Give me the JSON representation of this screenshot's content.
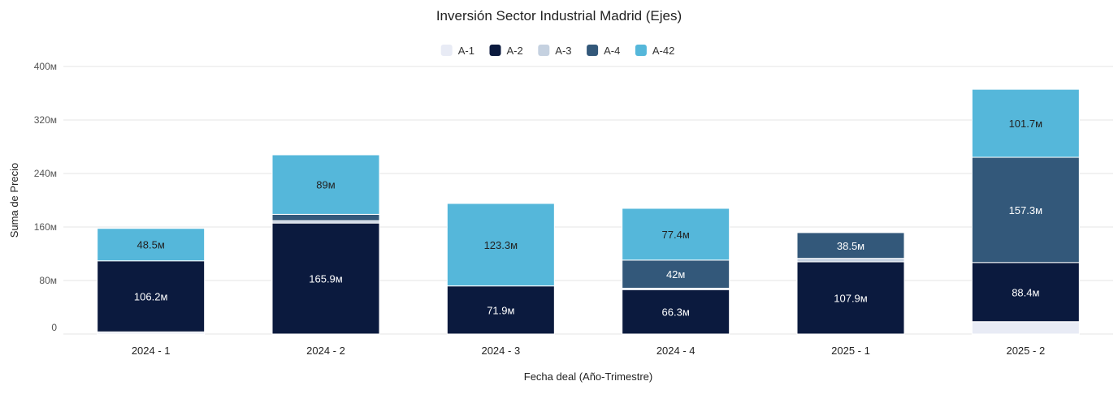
{
  "chart_data": {
    "type": "bar",
    "stacked": true,
    "title": "Inversión Sector Industrial Madrid (Ejes)",
    "xlabel": "Fecha deal (Año-Trimestre)",
    "ylabel": "Suma de Precio",
    "ylim": [
      0,
      400
    ],
    "yticks": [
      0,
      80,
      160,
      240,
      320,
      400
    ],
    "ytick_labels": [
      "0",
      "80м",
      "160м",
      "240м",
      "320м",
      "400м"
    ],
    "grid": true,
    "legend_position": "top-center",
    "categories": [
      "2024 - 1",
      "2024 - 2",
      "2024 - 3",
      "2024 - 4",
      "2025 - 1",
      "2025 - 2"
    ],
    "series": [
      {
        "name": "A-1",
        "color": "#e8ebf5",
        "values": [
          3.2,
          0,
          0,
          0,
          0,
          18.5
        ],
        "labels": [
          "",
          "",
          "",
          "",
          "",
          ""
        ],
        "label_color": "#333333"
      },
      {
        "name": "A-2",
        "color": "#0b1a3e",
        "values": [
          106.2,
          165.9,
          71.9,
          66.3,
          107.9,
          88.4
        ],
        "labels": [
          "106.2м",
          "165.9м",
          "71.9м",
          "66.3м",
          "107.9м",
          "88.4м"
        ],
        "label_color": "#ffffff"
      },
      {
        "name": "A-3",
        "color": "#c5d1e0",
        "values": [
          0,
          3.5,
          0,
          2.2,
          5.2,
          0
        ],
        "labels": [
          "",
          "",
          "",
          "",
          "",
          ""
        ],
        "label_color": "#333333"
      },
      {
        "name": "A-4",
        "color": "#33587a",
        "values": [
          0,
          9.5,
          0,
          42,
          38.5,
          157.3
        ],
        "labels": [
          "",
          "",
          "",
          "42м",
          "38.5м",
          "157.3м"
        ],
        "label_color": "#ffffff"
      },
      {
        "name": "A-42",
        "color": "#55b7da",
        "values": [
          48.5,
          89,
          123.3,
          77.4,
          0,
          101.7
        ],
        "labels": [
          "48.5м",
          "89м",
          "123.3м",
          "77.4м",
          "",
          "101.7м"
        ],
        "label_color": "#222222"
      }
    ]
  }
}
